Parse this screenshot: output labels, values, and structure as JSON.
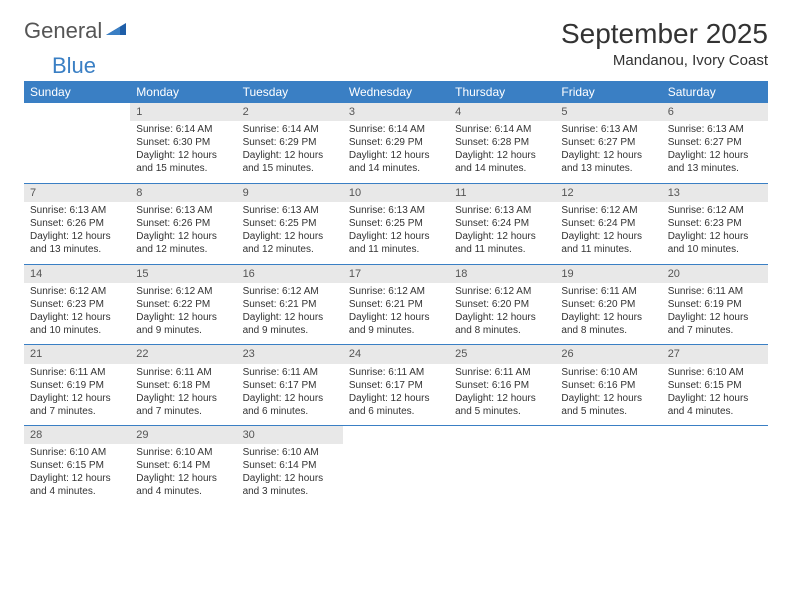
{
  "logo": {
    "text1": "General",
    "text2": "Blue"
  },
  "title": "September 2025",
  "location": "Mandanou, Ivory Coast",
  "colors": {
    "header_bg": "#3a7fc4",
    "header_text": "#ffffff",
    "daynum_bg": "#e8e8e8",
    "border": "#3a7fc4",
    "logo_gray": "#555555",
    "logo_blue": "#3a7fc4"
  },
  "weekdays": [
    "Sunday",
    "Monday",
    "Tuesday",
    "Wednesday",
    "Thursday",
    "Friday",
    "Saturday"
  ],
  "weeks": [
    {
      "nums": [
        "",
        "1",
        "2",
        "3",
        "4",
        "5",
        "6"
      ],
      "cells": [
        null,
        {
          "sunrise": "Sunrise: 6:14 AM",
          "sunset": "Sunset: 6:30 PM",
          "day1": "Daylight: 12 hours",
          "day2": "and 15 minutes."
        },
        {
          "sunrise": "Sunrise: 6:14 AM",
          "sunset": "Sunset: 6:29 PM",
          "day1": "Daylight: 12 hours",
          "day2": "and 15 minutes."
        },
        {
          "sunrise": "Sunrise: 6:14 AM",
          "sunset": "Sunset: 6:29 PM",
          "day1": "Daylight: 12 hours",
          "day2": "and 14 minutes."
        },
        {
          "sunrise": "Sunrise: 6:14 AM",
          "sunset": "Sunset: 6:28 PM",
          "day1": "Daylight: 12 hours",
          "day2": "and 14 minutes."
        },
        {
          "sunrise": "Sunrise: 6:13 AM",
          "sunset": "Sunset: 6:27 PM",
          "day1": "Daylight: 12 hours",
          "day2": "and 13 minutes."
        },
        {
          "sunrise": "Sunrise: 6:13 AM",
          "sunset": "Sunset: 6:27 PM",
          "day1": "Daylight: 12 hours",
          "day2": "and 13 minutes."
        }
      ]
    },
    {
      "nums": [
        "7",
        "8",
        "9",
        "10",
        "11",
        "12",
        "13"
      ],
      "cells": [
        {
          "sunrise": "Sunrise: 6:13 AM",
          "sunset": "Sunset: 6:26 PM",
          "day1": "Daylight: 12 hours",
          "day2": "and 13 minutes."
        },
        {
          "sunrise": "Sunrise: 6:13 AM",
          "sunset": "Sunset: 6:26 PM",
          "day1": "Daylight: 12 hours",
          "day2": "and 12 minutes."
        },
        {
          "sunrise": "Sunrise: 6:13 AM",
          "sunset": "Sunset: 6:25 PM",
          "day1": "Daylight: 12 hours",
          "day2": "and 12 minutes."
        },
        {
          "sunrise": "Sunrise: 6:13 AM",
          "sunset": "Sunset: 6:25 PM",
          "day1": "Daylight: 12 hours",
          "day2": "and 11 minutes."
        },
        {
          "sunrise": "Sunrise: 6:13 AM",
          "sunset": "Sunset: 6:24 PM",
          "day1": "Daylight: 12 hours",
          "day2": "and 11 minutes."
        },
        {
          "sunrise": "Sunrise: 6:12 AM",
          "sunset": "Sunset: 6:24 PM",
          "day1": "Daylight: 12 hours",
          "day2": "and 11 minutes."
        },
        {
          "sunrise": "Sunrise: 6:12 AM",
          "sunset": "Sunset: 6:23 PM",
          "day1": "Daylight: 12 hours",
          "day2": "and 10 minutes."
        }
      ]
    },
    {
      "nums": [
        "14",
        "15",
        "16",
        "17",
        "18",
        "19",
        "20"
      ],
      "cells": [
        {
          "sunrise": "Sunrise: 6:12 AM",
          "sunset": "Sunset: 6:23 PM",
          "day1": "Daylight: 12 hours",
          "day2": "and 10 minutes."
        },
        {
          "sunrise": "Sunrise: 6:12 AM",
          "sunset": "Sunset: 6:22 PM",
          "day1": "Daylight: 12 hours",
          "day2": "and 9 minutes."
        },
        {
          "sunrise": "Sunrise: 6:12 AM",
          "sunset": "Sunset: 6:21 PM",
          "day1": "Daylight: 12 hours",
          "day2": "and 9 minutes."
        },
        {
          "sunrise": "Sunrise: 6:12 AM",
          "sunset": "Sunset: 6:21 PM",
          "day1": "Daylight: 12 hours",
          "day2": "and 9 minutes."
        },
        {
          "sunrise": "Sunrise: 6:12 AM",
          "sunset": "Sunset: 6:20 PM",
          "day1": "Daylight: 12 hours",
          "day2": "and 8 minutes."
        },
        {
          "sunrise": "Sunrise: 6:11 AM",
          "sunset": "Sunset: 6:20 PM",
          "day1": "Daylight: 12 hours",
          "day2": "and 8 minutes."
        },
        {
          "sunrise": "Sunrise: 6:11 AM",
          "sunset": "Sunset: 6:19 PM",
          "day1": "Daylight: 12 hours",
          "day2": "and 7 minutes."
        }
      ]
    },
    {
      "nums": [
        "21",
        "22",
        "23",
        "24",
        "25",
        "26",
        "27"
      ],
      "cells": [
        {
          "sunrise": "Sunrise: 6:11 AM",
          "sunset": "Sunset: 6:19 PM",
          "day1": "Daylight: 12 hours",
          "day2": "and 7 minutes."
        },
        {
          "sunrise": "Sunrise: 6:11 AM",
          "sunset": "Sunset: 6:18 PM",
          "day1": "Daylight: 12 hours",
          "day2": "and 7 minutes."
        },
        {
          "sunrise": "Sunrise: 6:11 AM",
          "sunset": "Sunset: 6:17 PM",
          "day1": "Daylight: 12 hours",
          "day2": "and 6 minutes."
        },
        {
          "sunrise": "Sunrise: 6:11 AM",
          "sunset": "Sunset: 6:17 PM",
          "day1": "Daylight: 12 hours",
          "day2": "and 6 minutes."
        },
        {
          "sunrise": "Sunrise: 6:11 AM",
          "sunset": "Sunset: 6:16 PM",
          "day1": "Daylight: 12 hours",
          "day2": "and 5 minutes."
        },
        {
          "sunrise": "Sunrise: 6:10 AM",
          "sunset": "Sunset: 6:16 PM",
          "day1": "Daylight: 12 hours",
          "day2": "and 5 minutes."
        },
        {
          "sunrise": "Sunrise: 6:10 AM",
          "sunset": "Sunset: 6:15 PM",
          "day1": "Daylight: 12 hours",
          "day2": "and 4 minutes."
        }
      ]
    },
    {
      "nums": [
        "28",
        "29",
        "30",
        "",
        "",
        "",
        ""
      ],
      "cells": [
        {
          "sunrise": "Sunrise: 6:10 AM",
          "sunset": "Sunset: 6:15 PM",
          "day1": "Daylight: 12 hours",
          "day2": "and 4 minutes."
        },
        {
          "sunrise": "Sunrise: 6:10 AM",
          "sunset": "Sunset: 6:14 PM",
          "day1": "Daylight: 12 hours",
          "day2": "and 4 minutes."
        },
        {
          "sunrise": "Sunrise: 6:10 AM",
          "sunset": "Sunset: 6:14 PM",
          "day1": "Daylight: 12 hours",
          "day2": "and 3 minutes."
        },
        null,
        null,
        null,
        null
      ]
    }
  ]
}
